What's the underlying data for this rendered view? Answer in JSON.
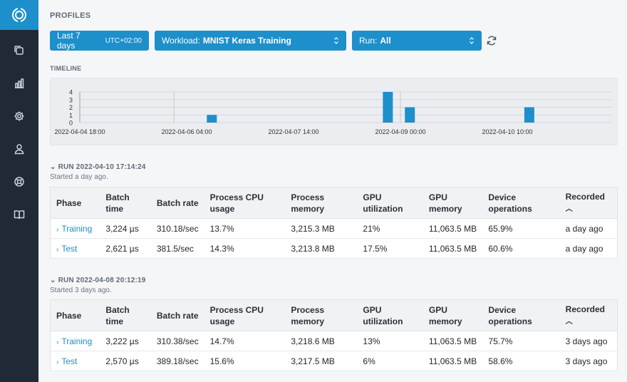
{
  "page": {
    "title": "PROFILES"
  },
  "filters": {
    "date_range": "Last 7 days",
    "timezone": "UTC+02:00",
    "workload_label": "Workload:",
    "workload_value": "MNIST Keras Training",
    "run_label": "Run:",
    "run_value": "All"
  },
  "timeline": {
    "label": "TIMELINE",
    "y_ticks": [
      "4",
      "3",
      "2",
      "1",
      "0"
    ],
    "x_ticks": [
      "2022-04-04 18:00",
      "2022-04-06 04:00",
      "2022-04-07 14:00",
      "2022-04-09 00:00",
      "2022-04-10 10:00"
    ]
  },
  "chart_data": {
    "type": "bar",
    "title": "TIMELINE",
    "ylim": [
      0,
      4
    ],
    "x_tick_labels": [
      "2022-04-04 18:00",
      "2022-04-06 04:00",
      "2022-04-07 14:00",
      "2022-04-09 00:00",
      "2022-04-10 10:00"
    ],
    "bars": [
      {
        "x": "2022-04-06 12:00",
        "value": 1
      },
      {
        "x": "2022-04-08 20:00",
        "value": 4
      },
      {
        "x": "2022-04-09 03:00",
        "value": 2
      },
      {
        "x": "2022-04-10 17:00",
        "value": 2
      }
    ]
  },
  "columns": [
    "Phase",
    "Batch time",
    "Batch rate",
    "Process CPU usage",
    "Process memory",
    "GPU utilization",
    "GPU memory",
    "Device operations",
    "Recorded"
  ],
  "runs": [
    {
      "title": "RUN 2022-04-10 17:14:24",
      "subtitle": "Started a day ago.",
      "rows": [
        {
          "phase": "Training",
          "batch_time": "3,224 µs",
          "batch_rate": "310.18/sec",
          "cpu": "13.7%",
          "mem": "3,215.3 MB",
          "gpu_util": "21%",
          "gpu_mem": "11,063.5 MB",
          "device_ops": "65.9%",
          "recorded": "a day ago"
        },
        {
          "phase": "Test",
          "batch_time": "2,621 µs",
          "batch_rate": "381.5/sec",
          "cpu": "14.3%",
          "mem": "3,213.8 MB",
          "gpu_util": "17.5%",
          "gpu_mem": "11,063.5 MB",
          "device_ops": "60.6%",
          "recorded": "a day ago"
        }
      ]
    },
    {
      "title": "RUN 2022-04-08 20:12:19",
      "subtitle": "Started 3 days ago.",
      "rows": [
        {
          "phase": "Training",
          "batch_time": "3,222 µs",
          "batch_rate": "310.38/sec",
          "cpu": "14.7%",
          "mem": "3,218.6 MB",
          "gpu_util": "13%",
          "gpu_mem": "11,063.5 MB",
          "device_ops": "75.7%",
          "recorded": "3 days ago"
        },
        {
          "phase": "Test",
          "batch_time": "2,570 µs",
          "batch_rate": "389.18/sec",
          "cpu": "15.6%",
          "mem": "3,217.5 MB",
          "gpu_util": "6%",
          "gpu_mem": "11,063.5 MB",
          "device_ops": "58.6%",
          "recorded": "3 days ago"
        }
      ]
    }
  ],
  "colors": {
    "accent": "#1d8fcb",
    "sidebar": "#1f2a36"
  }
}
